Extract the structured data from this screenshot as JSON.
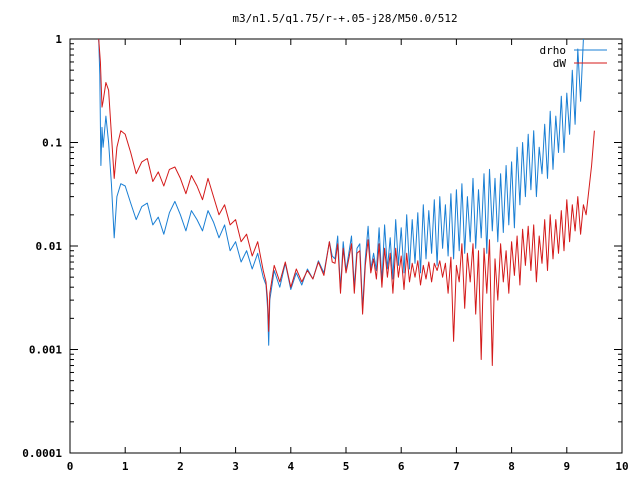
{
  "chart_data": {
    "type": "line",
    "title": "m3/n1.5/q1.75/r-+.05-j28/M50.0/512",
    "xlabel": "",
    "ylabel": "",
    "xlim": [
      0,
      10
    ],
    "ylim": [
      0.0001,
      1
    ],
    "yscale": "log",
    "grid": false,
    "legend_position": "top-right",
    "x_ticks": [
      0,
      1,
      2,
      3,
      4,
      5,
      6,
      7,
      8,
      9,
      10
    ],
    "x_tick_labels": [
      "0",
      "1",
      "2",
      "3",
      "4",
      "5",
      "6",
      "7",
      "8",
      "9",
      "10"
    ],
    "y_ticks": [
      0.0001,
      0.001,
      0.01,
      0.1,
      1
    ],
    "y_tick_labels": [
      "0.0001",
      "0.001",
      "0.01",
      "0.1",
      "1"
    ],
    "series": [
      {
        "name": "drho",
        "color": "#1a7fd4",
        "points": [
          [
            0.52,
            1.0
          ],
          [
            0.54,
            0.45
          ],
          [
            0.56,
            0.06
          ],
          [
            0.58,
            0.14
          ],
          [
            0.6,
            0.09
          ],
          [
            0.65,
            0.18
          ],
          [
            0.7,
            0.1
          ],
          [
            0.75,
            0.04
          ],
          [
            0.8,
            0.012
          ],
          [
            0.85,
            0.03
          ],
          [
            0.92,
            0.04
          ],
          [
            1.0,
            0.038
          ],
          [
            1.1,
            0.026
          ],
          [
            1.2,
            0.018
          ],
          [
            1.3,
            0.024
          ],
          [
            1.4,
            0.026
          ],
          [
            1.5,
            0.016
          ],
          [
            1.6,
            0.019
          ],
          [
            1.7,
            0.013
          ],
          [
            1.8,
            0.021
          ],
          [
            1.9,
            0.027
          ],
          [
            2.0,
            0.02
          ],
          [
            2.1,
            0.014
          ],
          [
            2.2,
            0.022
          ],
          [
            2.3,
            0.018
          ],
          [
            2.4,
            0.014
          ],
          [
            2.5,
            0.022
          ],
          [
            2.6,
            0.017
          ],
          [
            2.7,
            0.012
          ],
          [
            2.8,
            0.016
          ],
          [
            2.9,
            0.009
          ],
          [
            3.0,
            0.011
          ],
          [
            3.1,
            0.007
          ],
          [
            3.2,
            0.009
          ],
          [
            3.3,
            0.006
          ],
          [
            3.4,
            0.0085
          ],
          [
            3.5,
            0.005
          ],
          [
            3.55,
            0.0042
          ],
          [
            3.58,
            0.0025
          ],
          [
            3.6,
            0.0011
          ],
          [
            3.62,
            0.003
          ],
          [
            3.7,
            0.0058
          ],
          [
            3.8,
            0.004
          ],
          [
            3.9,
            0.0068
          ],
          [
            4.0,
            0.0038
          ],
          [
            4.1,
            0.0055
          ],
          [
            4.2,
            0.0042
          ],
          [
            4.3,
            0.006
          ],
          [
            4.4,
            0.0048
          ],
          [
            4.5,
            0.0072
          ],
          [
            4.6,
            0.0055
          ],
          [
            4.7,
            0.011
          ],
          [
            4.75,
            0.008
          ],
          [
            4.8,
            0.0075
          ],
          [
            4.85,
            0.0125
          ],
          [
            4.9,
            0.0038
          ],
          [
            4.95,
            0.011
          ],
          [
            5.0,
            0.0058
          ],
          [
            5.05,
            0.0085
          ],
          [
            5.1,
            0.0125
          ],
          [
            5.15,
            0.004
          ],
          [
            5.2,
            0.0095
          ],
          [
            5.25,
            0.0105
          ],
          [
            5.3,
            0.0025
          ],
          [
            5.35,
            0.0075
          ],
          [
            5.4,
            0.0155
          ],
          [
            5.45,
            0.006
          ],
          [
            5.5,
            0.0085
          ],
          [
            5.55,
            0.0058
          ],
          [
            5.6,
            0.015
          ],
          [
            5.65,
            0.0045
          ],
          [
            5.7,
            0.016
          ],
          [
            5.75,
            0.006
          ],
          [
            5.8,
            0.012
          ],
          [
            5.85,
            0.0048
          ],
          [
            5.9,
            0.018
          ],
          [
            5.95,
            0.0065
          ],
          [
            6.0,
            0.015
          ],
          [
            6.05,
            0.0055
          ],
          [
            6.1,
            0.02
          ],
          [
            6.15,
            0.006
          ],
          [
            6.2,
            0.018
          ],
          [
            6.25,
            0.0068
          ],
          [
            6.3,
            0.021
          ],
          [
            6.35,
            0.0055
          ],
          [
            6.4,
            0.025
          ],
          [
            6.45,
            0.0075
          ],
          [
            6.5,
            0.022
          ],
          [
            6.55,
            0.0085
          ],
          [
            6.6,
            0.028
          ],
          [
            6.65,
            0.0065
          ],
          [
            6.7,
            0.03
          ],
          [
            6.75,
            0.0095
          ],
          [
            6.8,
            0.025
          ],
          [
            6.85,
            0.008
          ],
          [
            6.9,
            0.032
          ],
          [
            6.95,
            0.0075
          ],
          [
            7.0,
            0.035
          ],
          [
            7.05,
            0.009
          ],
          [
            7.1,
            0.04
          ],
          [
            7.15,
            0.0085
          ],
          [
            7.2,
            0.03
          ],
          [
            7.25,
            0.011
          ],
          [
            7.3,
            0.045
          ],
          [
            7.35,
            0.0095
          ],
          [
            7.4,
            0.035
          ],
          [
            7.45,
            0.012
          ],
          [
            7.5,
            0.05
          ],
          [
            7.55,
            0.0085
          ],
          [
            7.6,
            0.055
          ],
          [
            7.65,
            0.014
          ],
          [
            7.7,
            0.045
          ],
          [
            7.75,
            0.011
          ],
          [
            7.8,
            0.05
          ],
          [
            7.85,
            0.0135
          ],
          [
            7.9,
            0.06
          ],
          [
            7.95,
            0.016
          ],
          [
            8.0,
            0.065
          ],
          [
            8.05,
            0.015
          ],
          [
            8.1,
            0.09
          ],
          [
            8.15,
            0.025
          ],
          [
            8.2,
            0.1
          ],
          [
            8.25,
            0.03
          ],
          [
            8.3,
            0.12
          ],
          [
            8.35,
            0.035
          ],
          [
            8.4,
            0.13
          ],
          [
            8.45,
            0.03
          ],
          [
            8.5,
            0.09
          ],
          [
            8.55,
            0.05
          ],
          [
            8.6,
            0.15
          ],
          [
            8.65,
            0.045
          ],
          [
            8.7,
            0.2
          ],
          [
            8.75,
            0.055
          ],
          [
            8.8,
            0.18
          ],
          [
            8.85,
            0.08
          ],
          [
            8.9,
            0.28
          ],
          [
            8.95,
            0.08
          ],
          [
            9.0,
            0.3
          ],
          [
            9.05,
            0.12
          ],
          [
            9.1,
            0.5
          ],
          [
            9.15,
            0.15
          ],
          [
            9.2,
            0.8
          ],
          [
            9.25,
            0.25
          ],
          [
            9.3,
            1.0
          ]
        ]
      },
      {
        "name": "dW",
        "color": "#d41a1a",
        "points": [
          [
            0.52,
            1.0
          ],
          [
            0.55,
            0.6
          ],
          [
            0.58,
            0.22
          ],
          [
            0.6,
            0.25
          ],
          [
            0.65,
            0.38
          ],
          [
            0.7,
            0.32
          ],
          [
            0.75,
            0.12
          ],
          [
            0.8,
            0.045
          ],
          [
            0.85,
            0.09
          ],
          [
            0.92,
            0.13
          ],
          [
            1.0,
            0.12
          ],
          [
            1.1,
            0.08
          ],
          [
            1.2,
            0.05
          ],
          [
            1.3,
            0.065
          ],
          [
            1.4,
            0.07
          ],
          [
            1.5,
            0.042
          ],
          [
            1.6,
            0.052
          ],
          [
            1.7,
            0.038
          ],
          [
            1.8,
            0.055
          ],
          [
            1.9,
            0.058
          ],
          [
            2.0,
            0.045
          ],
          [
            2.1,
            0.032
          ],
          [
            2.2,
            0.048
          ],
          [
            2.3,
            0.038
          ],
          [
            2.4,
            0.028
          ],
          [
            2.5,
            0.045
          ],
          [
            2.6,
            0.03
          ],
          [
            2.7,
            0.02
          ],
          [
            2.8,
            0.025
          ],
          [
            2.9,
            0.016
          ],
          [
            3.0,
            0.018
          ],
          [
            3.1,
            0.011
          ],
          [
            3.2,
            0.013
          ],
          [
            3.3,
            0.008
          ],
          [
            3.4,
            0.011
          ],
          [
            3.5,
            0.0058
          ],
          [
            3.55,
            0.0045
          ],
          [
            3.58,
            0.003
          ],
          [
            3.6,
            0.0015
          ],
          [
            3.62,
            0.0035
          ],
          [
            3.7,
            0.0065
          ],
          [
            3.8,
            0.0045
          ],
          [
            3.9,
            0.007
          ],
          [
            4.0,
            0.004
          ],
          [
            4.1,
            0.006
          ],
          [
            4.2,
            0.0045
          ],
          [
            4.3,
            0.0058
          ],
          [
            4.4,
            0.0048
          ],
          [
            4.5,
            0.007
          ],
          [
            4.6,
            0.0052
          ],
          [
            4.7,
            0.011
          ],
          [
            4.75,
            0.007
          ],
          [
            4.8,
            0.0068
          ],
          [
            4.85,
            0.0105
          ],
          [
            4.9,
            0.0035
          ],
          [
            4.95,
            0.0095
          ],
          [
            5.0,
            0.0055
          ],
          [
            5.05,
            0.0075
          ],
          [
            5.1,
            0.0105
          ],
          [
            5.15,
            0.0035
          ],
          [
            5.2,
            0.0085
          ],
          [
            5.25,
            0.009
          ],
          [
            5.3,
            0.0022
          ],
          [
            5.35,
            0.0065
          ],
          [
            5.4,
            0.0115
          ],
          [
            5.45,
            0.0055
          ],
          [
            5.5,
            0.0075
          ],
          [
            5.55,
            0.0048
          ],
          [
            5.6,
            0.0105
          ],
          [
            5.65,
            0.004
          ],
          [
            5.7,
            0.0095
          ],
          [
            5.75,
            0.005
          ],
          [
            5.8,
            0.0085
          ],
          [
            5.85,
            0.0035
          ],
          [
            5.9,
            0.0095
          ],
          [
            5.95,
            0.005
          ],
          [
            6.0,
            0.008
          ],
          [
            6.05,
            0.0038
          ],
          [
            6.1,
            0.0085
          ],
          [
            6.15,
            0.0045
          ],
          [
            6.2,
            0.0068
          ],
          [
            6.25,
            0.005
          ],
          [
            6.3,
            0.0072
          ],
          [
            6.35,
            0.0042
          ],
          [
            6.4,
            0.0065
          ],
          [
            6.45,
            0.0048
          ],
          [
            6.5,
            0.007
          ],
          [
            6.55,
            0.0045
          ],
          [
            6.6,
            0.0068
          ],
          [
            6.65,
            0.0058
          ],
          [
            6.7,
            0.0072
          ],
          [
            6.75,
            0.005
          ],
          [
            6.8,
            0.0068
          ],
          [
            6.85,
            0.0035
          ],
          [
            6.9,
            0.0078
          ],
          [
            6.95,
            0.0012
          ],
          [
            7.0,
            0.0065
          ],
          [
            7.05,
            0.0045
          ],
          [
            7.1,
            0.0105
          ],
          [
            7.15,
            0.0025
          ],
          [
            7.2,
            0.0085
          ],
          [
            7.25,
            0.0045
          ],
          [
            7.3,
            0.0105
          ],
          [
            7.35,
            0.0022
          ],
          [
            7.4,
            0.009
          ],
          [
            7.45,
            0.0008
          ],
          [
            7.5,
            0.0095
          ],
          [
            7.55,
            0.0035
          ],
          [
            7.6,
            0.0115
          ],
          [
            7.65,
            0.0007
          ],
          [
            7.7,
            0.0075
          ],
          [
            7.75,
            0.003
          ],
          [
            7.8,
            0.0105
          ],
          [
            7.85,
            0.0045
          ],
          [
            7.9,
            0.009
          ],
          [
            7.95,
            0.0035
          ],
          [
            8.0,
            0.011
          ],
          [
            8.05,
            0.0052
          ],
          [
            8.1,
            0.0125
          ],
          [
            8.15,
            0.0042
          ],
          [
            8.2,
            0.0145
          ],
          [
            8.25,
            0.0065
          ],
          [
            8.3,
            0.0155
          ],
          [
            8.35,
            0.0058
          ],
          [
            8.4,
            0.016
          ],
          [
            8.45,
            0.0045
          ],
          [
            8.5,
            0.0125
          ],
          [
            8.55,
            0.0068
          ],
          [
            8.6,
            0.018
          ],
          [
            8.65,
            0.0058
          ],
          [
            8.7,
            0.02
          ],
          [
            8.75,
            0.0075
          ],
          [
            8.8,
            0.018
          ],
          [
            8.85,
            0.0085
          ],
          [
            8.9,
            0.022
          ],
          [
            8.95,
            0.009
          ],
          [
            9.0,
            0.028
          ],
          [
            9.05,
            0.011
          ],
          [
            9.1,
            0.025
          ],
          [
            9.15,
            0.014
          ],
          [
            9.2,
            0.03
          ],
          [
            9.25,
            0.013
          ],
          [
            9.3,
            0.025
          ],
          [
            9.35,
            0.02
          ],
          [
            9.4,
            0.035
          ],
          [
            9.45,
            0.06
          ],
          [
            9.5,
            0.13
          ]
        ]
      }
    ]
  }
}
